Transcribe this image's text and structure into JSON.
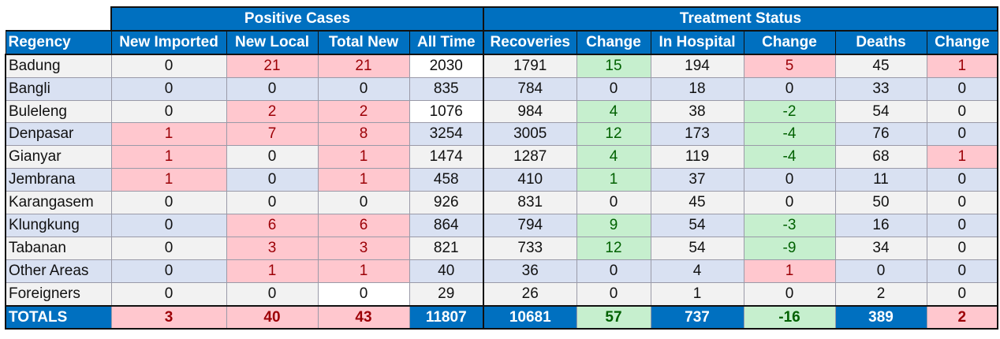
{
  "header": {
    "group_positive": "Positive Cases",
    "group_treatment": "Treatment Status"
  },
  "columns": [
    "Regency",
    "New Imported",
    "New Local",
    "Total New",
    "All Time",
    "Recoveries",
    "Change",
    "In Hospital",
    "Change",
    "Deaths",
    "Change"
  ],
  "rows": [
    {
      "name": "Badung",
      "v": [
        "0",
        "21",
        "21",
        "2030",
        "1791",
        "15",
        "194",
        "5",
        "45",
        "1"
      ],
      "s": [
        "",
        "pos",
        "pos",
        "white",
        "",
        "neg",
        "",
        "pos",
        "",
        "pos"
      ]
    },
    {
      "name": "Bangli",
      "v": [
        "0",
        "0",
        "0",
        "835",
        "784",
        "0",
        "18",
        "0",
        "33",
        "0"
      ],
      "s": [
        "",
        "",
        "",
        "",
        "",
        "",
        "",
        "",
        "",
        ""
      ]
    },
    {
      "name": "Buleleng",
      "v": [
        "0",
        "2",
        "2",
        "1076",
        "984",
        "4",
        "38",
        "-2",
        "54",
        "0"
      ],
      "s": [
        "",
        "pos",
        "pos",
        "white",
        "",
        "neg",
        "",
        "neg",
        "",
        ""
      ]
    },
    {
      "name": "Denpasar",
      "v": [
        "1",
        "7",
        "8",
        "3254",
        "3005",
        "12",
        "173",
        "-4",
        "76",
        "0"
      ],
      "s": [
        "pos",
        "pos",
        "pos",
        "",
        "",
        "neg",
        "",
        "neg",
        "",
        ""
      ]
    },
    {
      "name": "Gianyar",
      "v": [
        "1",
        "0",
        "1",
        "1474",
        "1287",
        "4",
        "119",
        "-4",
        "68",
        "1"
      ],
      "s": [
        "pos",
        "",
        "pos",
        "",
        "",
        "neg",
        "",
        "neg",
        "",
        "pos"
      ]
    },
    {
      "name": "Jembrana",
      "v": [
        "1",
        "0",
        "1",
        "458",
        "410",
        "1",
        "37",
        "0",
        "11",
        "0"
      ],
      "s": [
        "pos",
        "",
        "pos",
        "",
        "",
        "neg",
        "",
        "",
        "",
        ""
      ]
    },
    {
      "name": "Karangasem",
      "v": [
        "0",
        "0",
        "0",
        "926",
        "831",
        "0",
        "45",
        "0",
        "50",
        "0"
      ],
      "s": [
        "",
        "",
        "",
        "",
        "",
        "",
        "",
        "",
        "",
        ""
      ]
    },
    {
      "name": "Klungkung",
      "v": [
        "0",
        "6",
        "6",
        "864",
        "794",
        "9",
        "54",
        "-3",
        "16",
        "0"
      ],
      "s": [
        "",
        "pos",
        "pos",
        "",
        "",
        "neg",
        "",
        "neg",
        "",
        ""
      ]
    },
    {
      "name": "Tabanan",
      "v": [
        "0",
        "3",
        "3",
        "821",
        "733",
        "12",
        "54",
        "-9",
        "34",
        "0"
      ],
      "s": [
        "",
        "pos",
        "pos",
        "",
        "",
        "neg",
        "",
        "neg",
        "",
        ""
      ]
    },
    {
      "name": "Other Areas",
      "v": [
        "0",
        "1",
        "1",
        "40",
        "36",
        "0",
        "4",
        "1",
        "0",
        "0"
      ],
      "s": [
        "",
        "pos",
        "pos",
        "",
        "",
        "",
        "",
        "pos",
        "",
        ""
      ]
    },
    {
      "name": "Foreigners",
      "v": [
        "0",
        "0",
        "0",
        "29",
        "26",
        "0",
        "1",
        "0",
        "2",
        "0"
      ],
      "s": [
        "",
        "",
        "white",
        "",
        "",
        "",
        "",
        "",
        "",
        ""
      ]
    }
  ],
  "totals": {
    "name": "TOTALS",
    "v": [
      "3",
      "40",
      "43",
      "11807",
      "10681",
      "57",
      "737",
      "-16",
      "389",
      "2"
    ],
    "s": [
      "pos",
      "pos",
      "pos",
      "blue",
      "blue",
      "neg",
      "blue",
      "neg",
      "blue",
      "pos"
    ]
  },
  "colors": {
    "header_blue": "#0070c0",
    "pos_bg": "#ffc7ce",
    "pos_fg": "#9c0006",
    "neg_bg": "#c6efce",
    "neg_fg": "#006100",
    "row_odd": "#f2f2f2",
    "row_even": "#d9e1f2"
  }
}
